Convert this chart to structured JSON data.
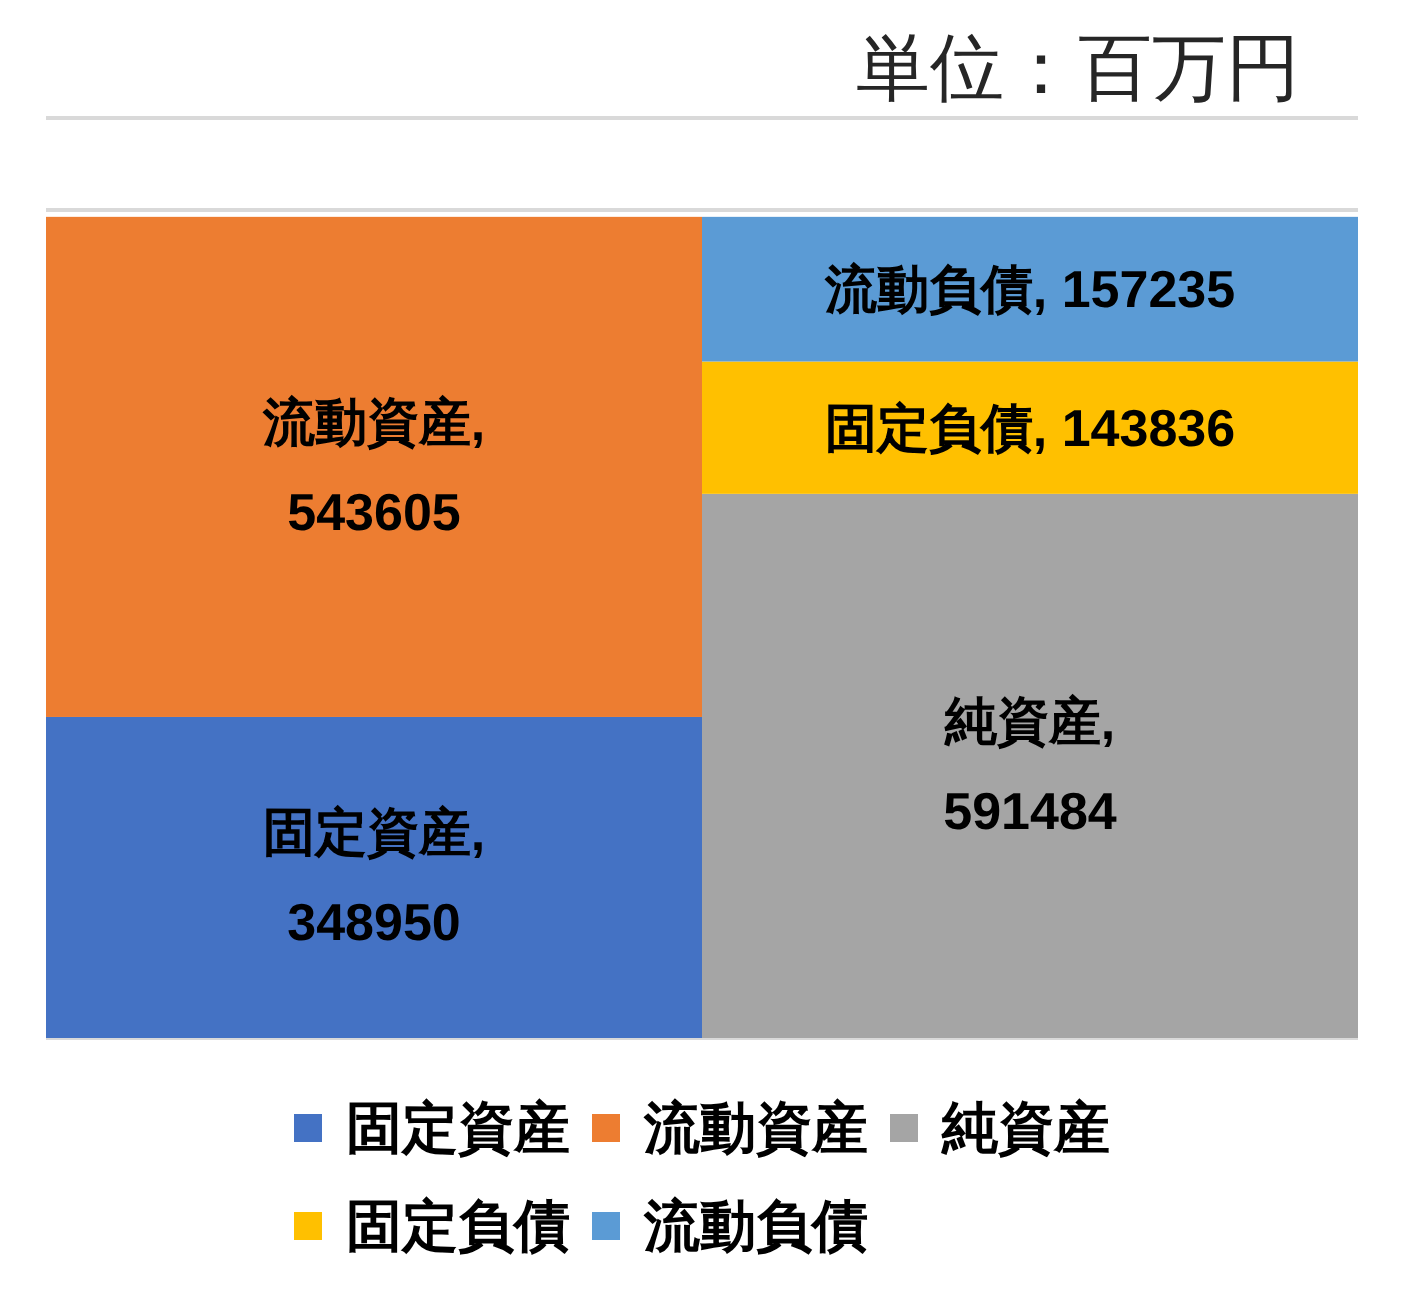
{
  "chart_data": {
    "type": "bar",
    "stacked": true,
    "annotations": [
      "単位：百万円"
    ],
    "categories": [
      null,
      null
    ],
    "series": [
      {
        "name": "固定資産",
        "color": "#4472c4",
        "values": [
          348950,
          null
        ],
        "value_labels": [
          "固定資産, 348950",
          null
        ]
      },
      {
        "name": "流動資産",
        "color": "#ed7d31",
        "values": [
          543605,
          null
        ],
        "value_labels": [
          "流動資産, 543605",
          null
        ]
      },
      {
        "name": "純資産",
        "color": "#a5a5a5",
        "values": [
          null,
          591484
        ],
        "value_labels": [
          null,
          "純資産, 591484"
        ]
      },
      {
        "name": "固定負債",
        "color": "#ffc000",
        "values": [
          null,
          143836
        ],
        "value_labels": [
          null,
          "固定負債, 143836"
        ]
      },
      {
        "name": "流動負債",
        "color": "#5b9bd5",
        "values": [
          null,
          157235
        ],
        "value_labels": [
          null,
          "流動負債, 157235"
        ]
      }
    ],
    "ylim": [
      0,
      1000000
    ],
    "yticks": [
      0,
      900000,
      1000000
    ],
    "tick_labels": false,
    "grid": "y",
    "legend": "bottom"
  }
}
